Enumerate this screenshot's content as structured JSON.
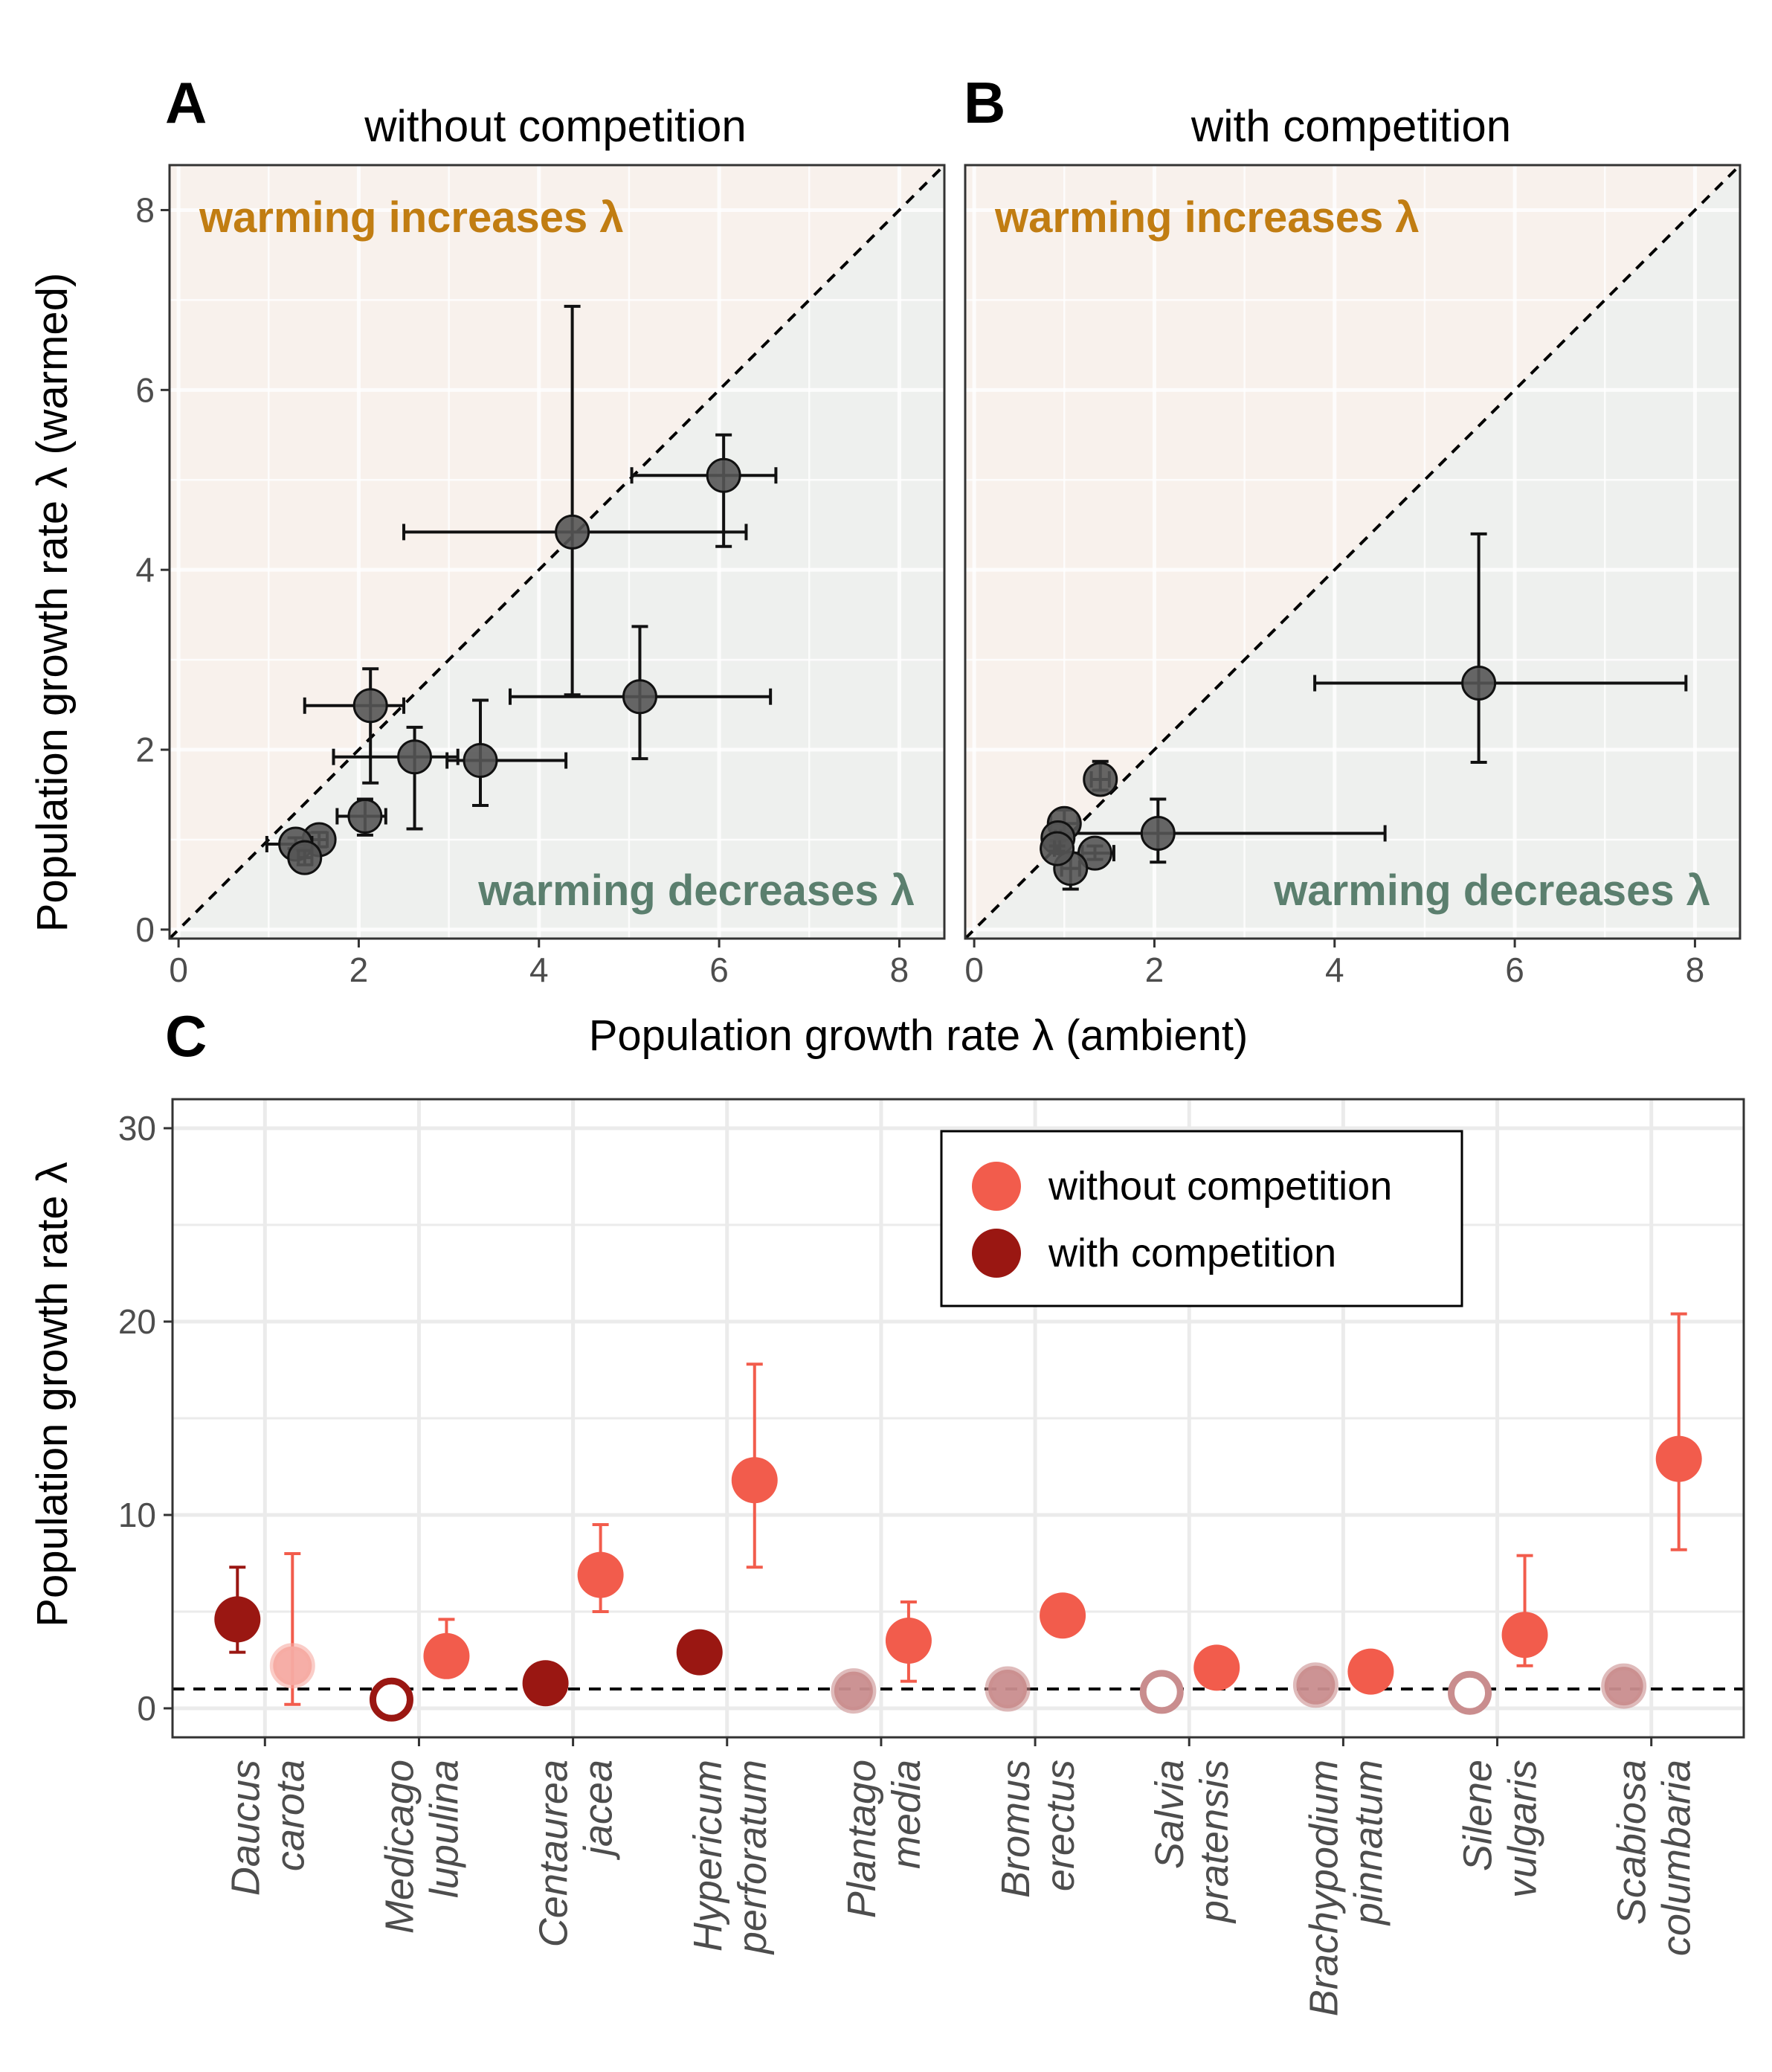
{
  "colors": {
    "point_gray": "#555555",
    "region_increase_bg": "#f8f1ec",
    "region_decrease_bg": "#eef0ee",
    "increase_text": "#c17d12",
    "decrease_text": "#5b7f6e",
    "without_competition": "#f25c4c",
    "with_competition": "#9a1712",
    "faded_light": "#f6aaa2",
    "faded_dark": "#c98d8e"
  },
  "figure": {
    "shared_xlabel": "Population growth rate λ (ambient)",
    "shared_ylabel_ab": "Population growth rate λ (warmed)",
    "ylabel_c": "Population growth rate λ"
  },
  "panels": {
    "A": {
      "label": "A",
      "title": "without competition"
    },
    "B": {
      "label": "B",
      "title": "with competition"
    },
    "C": {
      "label": "C"
    }
  },
  "region_labels": {
    "increase": "warming increases λ",
    "decrease": "warming decreases λ"
  },
  "chart_data": [
    {
      "panel": "A",
      "type": "scatter",
      "title": "without competition",
      "xlabel": "Population growth rate λ (ambient)",
      "ylabel": "Population growth rate λ (warmed)",
      "xlim": [
        -0.1,
        8.5
      ],
      "ylim": [
        -0.1,
        8.5
      ],
      "ticks": [
        "0",
        "2",
        "4",
        "6",
        "8"
      ],
      "reference_line": "y = x (dashed)",
      "points": [
        {
          "x": 2.13,
          "y": 2.49,
          "xerr": [
            1.4,
            2.5
          ],
          "yerr": [
            1.63,
            2.9
          ]
        },
        {
          "x": 2.62,
          "y": 1.92,
          "xerr": [
            1.72,
            3.1
          ],
          "yerr": [
            1.12,
            2.25
          ]
        },
        {
          "x": 3.35,
          "y": 1.88,
          "xerr": [
            2.98,
            4.3
          ],
          "yerr": [
            1.38,
            2.55
          ]
        },
        {
          "x": 4.37,
          "y": 4.42,
          "xerr": [
            2.5,
            6.3
          ],
          "yerr": [
            2.61,
            6.93
          ]
        },
        {
          "x": 5.12,
          "y": 2.59,
          "xerr": [
            3.68,
            6.57
          ],
          "yerr": [
            1.9,
            3.37
          ]
        },
        {
          "x": 6.05,
          "y": 5.05,
          "xerr": [
            5.03,
            6.63
          ],
          "yerr": [
            4.26,
            5.5
          ]
        },
        {
          "x": 2.07,
          "y": 1.26,
          "xerr": [
            1.76,
            2.3
          ],
          "yerr": [
            1.05,
            1.45
          ]
        },
        {
          "x": 1.56,
          "y": 1.0,
          "xerr": [
            1.45,
            1.65
          ],
          "yerr": [
            0.92,
            1.08
          ]
        },
        {
          "x": 1.3,
          "y": 0.95,
          "xerr": [
            0.98,
            1.48
          ],
          "yerr": [
            0.9,
            1.02
          ]
        },
        {
          "x": 1.4,
          "y": 0.8,
          "xerr": [
            1.33,
            1.48
          ],
          "yerr": [
            0.72,
            0.88
          ]
        }
      ]
    },
    {
      "panel": "B",
      "type": "scatter",
      "title": "with competition",
      "xlabel": "Population growth rate λ (ambient)",
      "ylabel": "Population growth rate λ (warmed)",
      "xlim": [
        -0.1,
        8.5
      ],
      "ylim": [
        -0.1,
        8.5
      ],
      "ticks": [
        "0",
        "2",
        "4",
        "6",
        "8"
      ],
      "reference_line": "y = x (dashed)",
      "points": [
        {
          "x": 5.6,
          "y": 2.74,
          "xerr": [
            3.78,
            7.9
          ],
          "yerr": [
            1.86,
            4.4
          ]
        },
        {
          "x": 2.04,
          "y": 1.07,
          "xerr": [
            1.0,
            4.56
          ],
          "yerr": [
            0.75,
            1.45
          ]
        },
        {
          "x": 1.4,
          "y": 1.67,
          "xerr": [
            1.3,
            1.5
          ],
          "yerr": [
            1.55,
            1.87
          ]
        },
        {
          "x": 1.0,
          "y": 1.18,
          "xerr": [
            0.85,
            1.15
          ],
          "yerr": [
            1.05,
            1.33
          ]
        },
        {
          "x": 1.34,
          "y": 0.85,
          "xerr": [
            1.2,
            1.55
          ],
          "yerr": [
            0.78,
            0.93
          ]
        },
        {
          "x": 1.07,
          "y": 0.68,
          "xerr": [
            0.97,
            1.17
          ],
          "yerr": [
            0.45,
            0.85
          ]
        },
        {
          "x": 0.93,
          "y": 1.02,
          "xerr": [
            0.9,
            0.96
          ],
          "yerr": [
            0.99,
            1.05
          ]
        },
        {
          "x": 0.92,
          "y": 0.9,
          "xerr": [
            0.89,
            0.95
          ],
          "yerr": [
            0.87,
            0.93
          ]
        }
      ]
    },
    {
      "panel": "C",
      "type": "scatter",
      "ylabel": "Population growth rate λ",
      "ylim": [
        -1.5,
        31.5
      ],
      "yticks": [
        0,
        10,
        20,
        30
      ],
      "reference_line": "y = 1 (dashed)",
      "categories": [
        [
          "Daucus",
          "carota"
        ],
        [
          "Medicago",
          "lupulina"
        ],
        [
          "Centaurea",
          "jacea"
        ],
        [
          "Hypericum",
          "perforatum"
        ],
        [
          "Plantago",
          "media"
        ],
        [
          "Bromus",
          "erectus"
        ],
        [
          "Salvia",
          "pratensis"
        ],
        [
          "Brachypodium",
          "pinnatum"
        ],
        [
          "Silene",
          "vulgaris"
        ],
        [
          "Scabiosa",
          "columbaria"
        ]
      ],
      "legend": {
        "position": "top-right",
        "entries": [
          {
            "label": "without competition",
            "color": "#f25c4c"
          },
          {
            "label": "with competition",
            "color": "#9a1712"
          }
        ]
      },
      "series": [
        {
          "name": "with competition",
          "color": "#9a1712",
          "points": [
            {
              "cat": 0,
              "y": 4.6,
              "lo": 2.9,
              "hi": 7.3,
              "style": "filled"
            },
            {
              "cat": 1,
              "y": 0.45,
              "style": "hollow"
            },
            {
              "cat": 2,
              "y": 1.3,
              "style": "filled"
            },
            {
              "cat": 3,
              "y": 2.9,
              "style": "filled"
            },
            {
              "cat": 4,
              "y": 0.9,
              "style": "faded"
            },
            {
              "cat": 5,
              "y": 1.0,
              "style": "faded"
            },
            {
              "cat": 6,
              "y": 0.85,
              "style": "faded-hollow"
            },
            {
              "cat": 7,
              "y": 1.2,
              "style": "faded"
            },
            {
              "cat": 8,
              "y": 0.8,
              "style": "faded-hollow"
            },
            {
              "cat": 9,
              "y": 1.15,
              "style": "faded"
            }
          ]
        },
        {
          "name": "without competition",
          "color": "#f25c4c",
          "points": [
            {
              "cat": 0,
              "y": 2.2,
              "lo": 0.2,
              "hi": 8.0,
              "style": "faded"
            },
            {
              "cat": 1,
              "y": 2.7,
              "lo": 2.0,
              "hi": 4.6,
              "style": "filled"
            },
            {
              "cat": 2,
              "y": 6.9,
              "lo": 5.0,
              "hi": 9.5,
              "style": "filled"
            },
            {
              "cat": 3,
              "y": 11.8,
              "lo": 7.3,
              "hi": 17.8,
              "style": "filled"
            },
            {
              "cat": 4,
              "y": 3.5,
              "lo": 1.4,
              "hi": 5.5,
              "style": "filled"
            },
            {
              "cat": 5,
              "y": 4.8,
              "style": "filled"
            },
            {
              "cat": 6,
              "y": 2.1,
              "style": "filled"
            },
            {
              "cat": 7,
              "y": 1.9,
              "style": "filled"
            },
            {
              "cat": 8,
              "y": 3.8,
              "lo": 2.2,
              "hi": 7.9,
              "style": "filled"
            },
            {
              "cat": 9,
              "y": 12.9,
              "lo": 8.2,
              "hi": 20.4,
              "style": "filled"
            }
          ]
        }
      ]
    }
  ]
}
